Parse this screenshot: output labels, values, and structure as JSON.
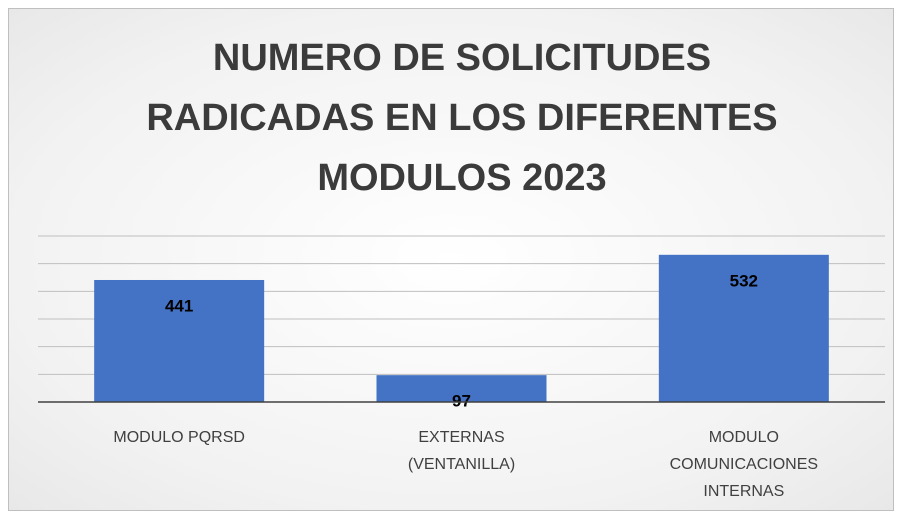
{
  "chart_data": {
    "type": "bar",
    "title": "NUMERO DE SOLICITUDES RADICADAS EN LOS DIFERENTES MODULOS 2023",
    "categories": [
      "MODULO PQRSD",
      "EXTERNAS  (VENTANILLA)",
      "MODULO COMUNICACIONES INTERNAS"
    ],
    "values": [
      441,
      97,
      532
    ],
    "color": "#4472c4",
    "ylim": [
      0,
      600
    ],
    "yticks": [
      0,
      100,
      200,
      300,
      400,
      500,
      600
    ],
    "grid": true
  }
}
